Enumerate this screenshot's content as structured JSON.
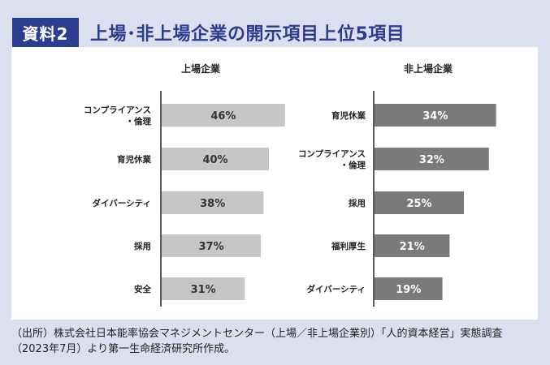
{
  "header": {
    "badge": "資料2",
    "title": "上場･非上場企業の開示項目上位5項目"
  },
  "chart_data": [
    {
      "type": "bar",
      "orientation": "horizontal",
      "title": "上場企業",
      "categories": [
        "コンプライアンス\n・倫理",
        "育児休業",
        "ダイバーシティ",
        "採用",
        "安全"
      ],
      "values": [
        46,
        40,
        38,
        37,
        31
      ],
      "value_labels": [
        "46%",
        "40%",
        "38%",
        "37%",
        "31%"
      ],
      "unit": "%",
      "bar_color": "#c6c6c6",
      "label_color": "#333333"
    },
    {
      "type": "bar",
      "orientation": "horizontal",
      "title": "非上場企業",
      "categories": [
        "育児休業",
        "コンプライアンス\n・倫理",
        "採用",
        "福利厚生",
        "ダイバーシティ"
      ],
      "values": [
        34,
        32,
        25,
        21,
        19
      ],
      "value_labels": [
        "34%",
        "32%",
        "25%",
        "21%",
        "19%"
      ],
      "unit": "%",
      "bar_color": "#7a7a7a",
      "label_color": "#ffffff"
    }
  ],
  "footnote": "（出所）株式会社日本能率協会マネジメントセンター（上場／非上場企業別）「人的資本経営」実態調査（2023年7月）より第一生命経済研究所作成。"
}
